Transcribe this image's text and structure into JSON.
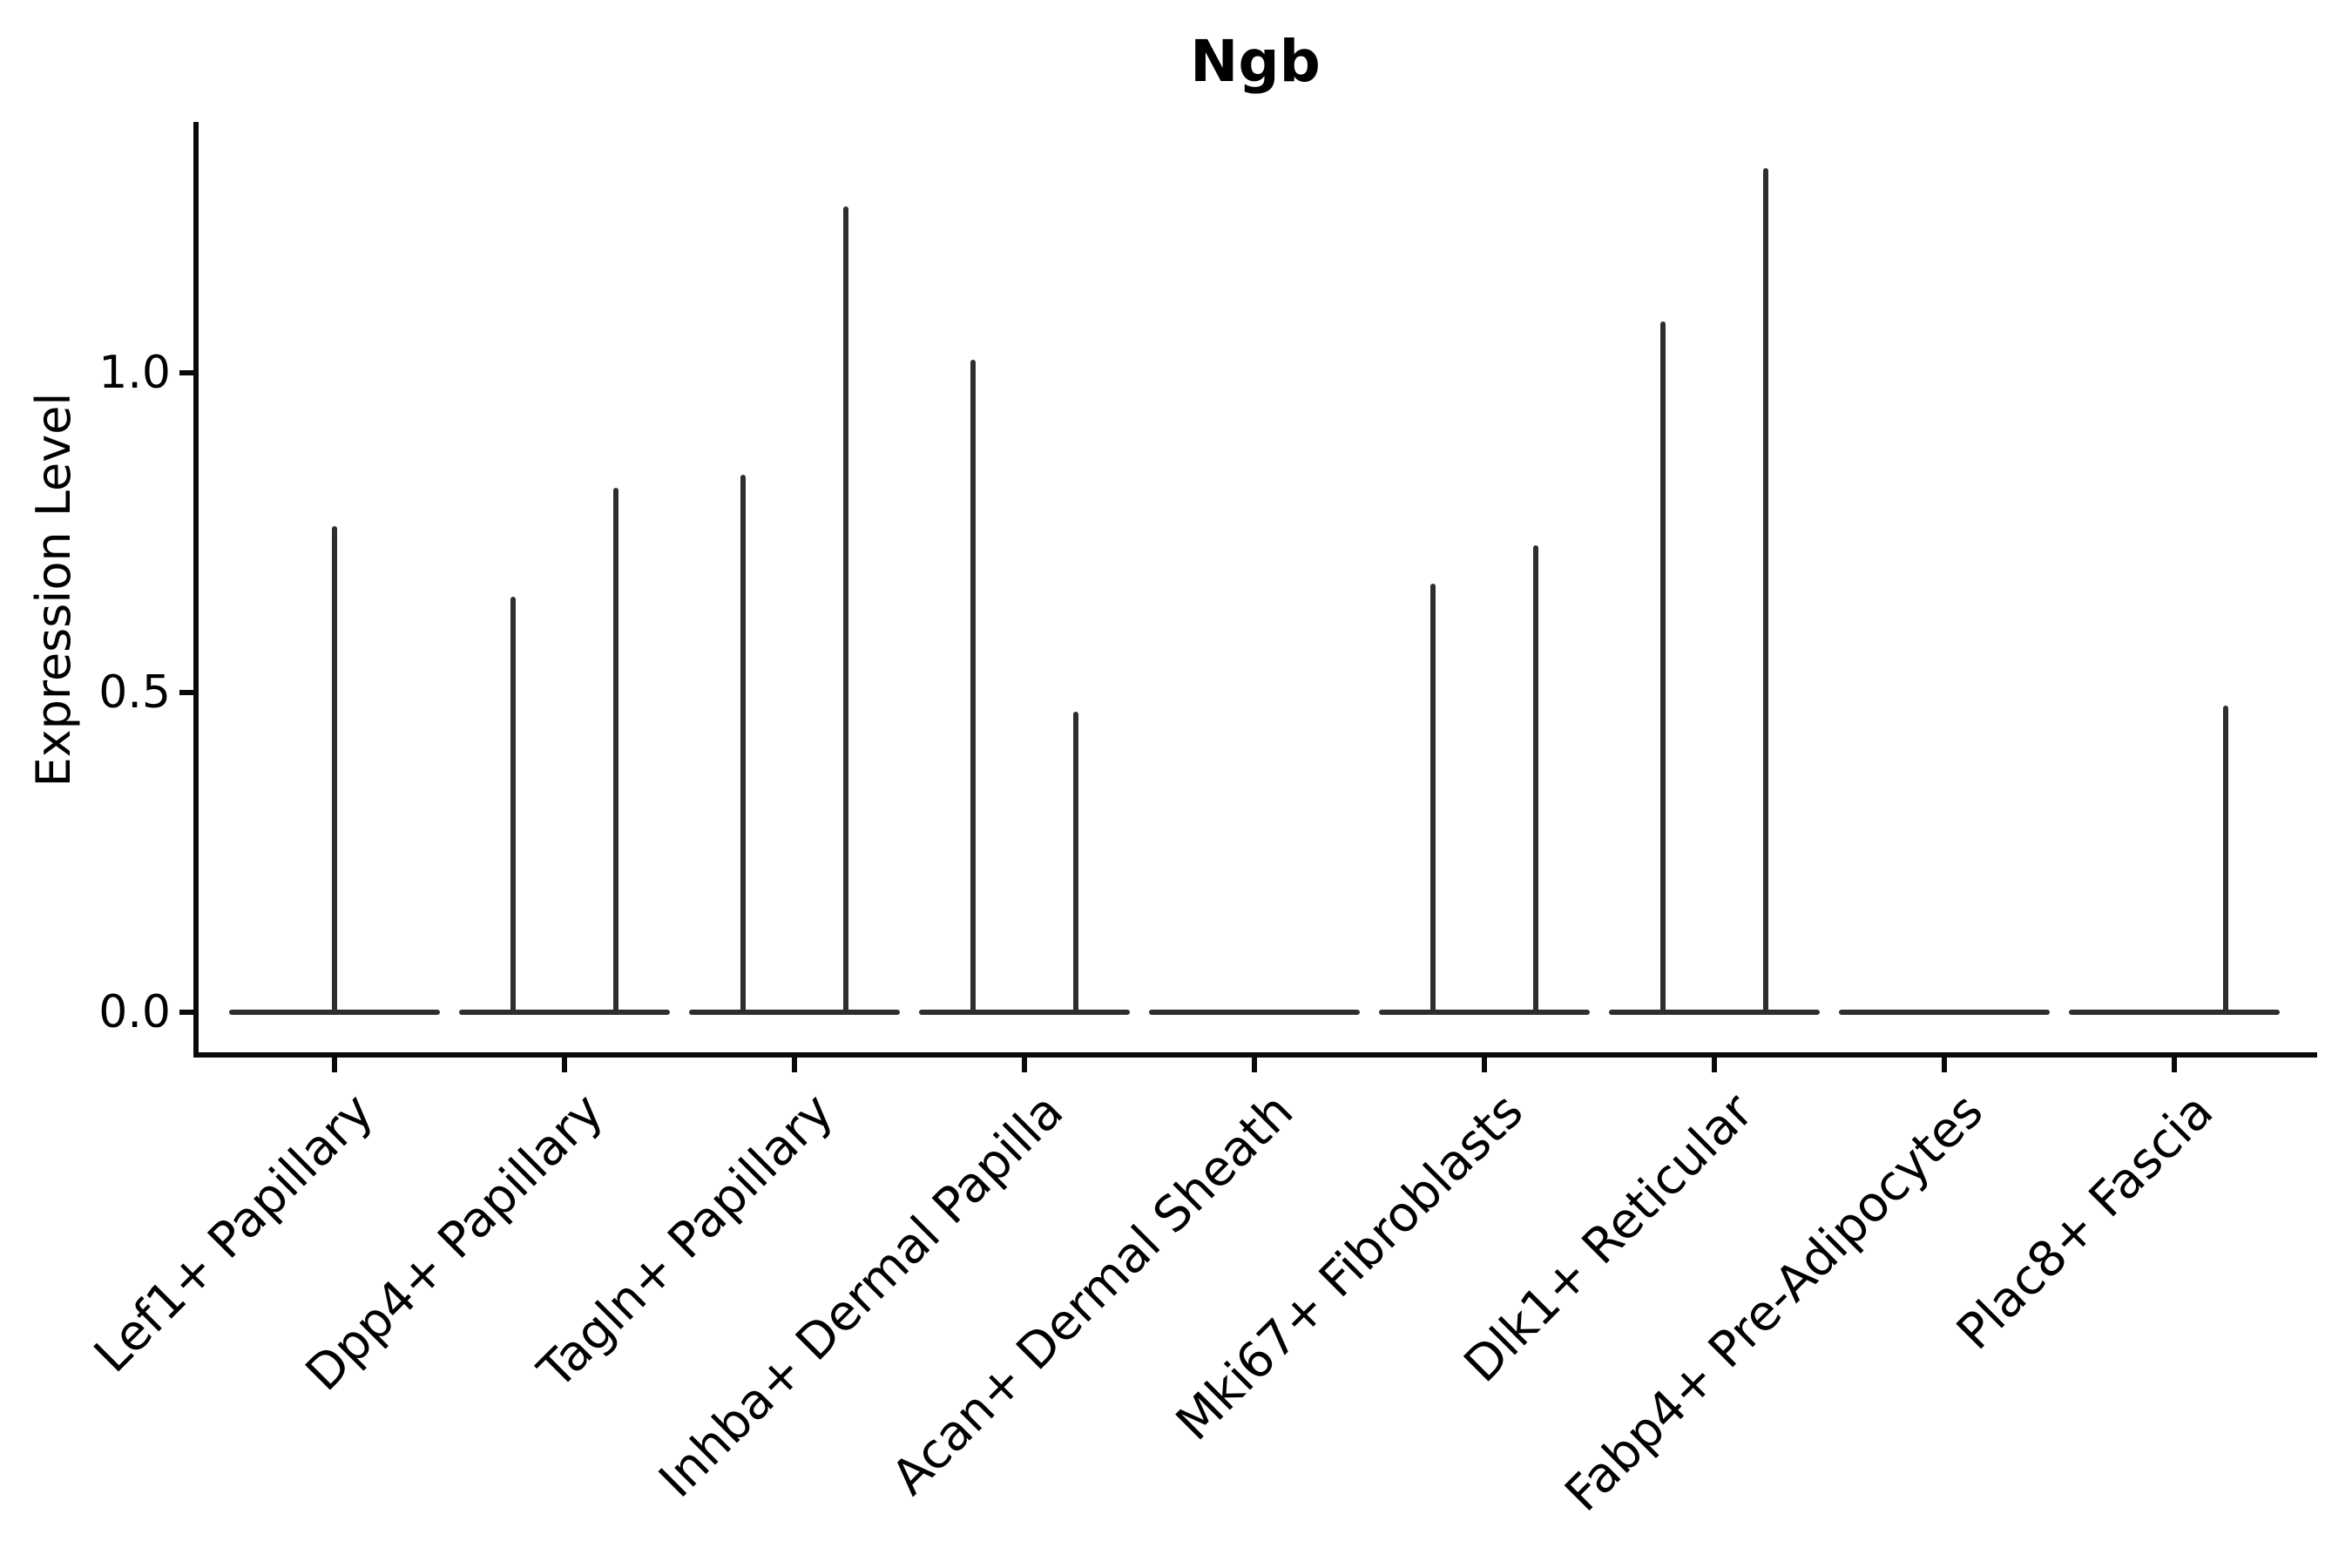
{
  "chart_data": {
    "type": "violin",
    "title": "Ngb",
    "xlabel": "",
    "ylabel": "Expression Level",
    "grid": false,
    "legend": "none",
    "ylim": [
      -0.07,
      1.39
    ],
    "baseline_value": 0.0,
    "y_ticks": [
      {
        "label": "0.0",
        "value": 0.0
      },
      {
        "label": "0.5",
        "value": 0.5
      },
      {
        "label": "1.0",
        "value": 1.0
      }
    ],
    "categories": [
      {
        "label": "Lef1+ Papillary",
        "violins": [
          {
            "pos": "center",
            "max": 0.76
          }
        ]
      },
      {
        "label": "Dpp4+ Papillary",
        "violins": [
          {
            "pos": "left",
            "max": 0.65
          },
          {
            "pos": "right",
            "max": 0.82
          }
        ]
      },
      {
        "label": "Tagln+ Papillary",
        "violins": [
          {
            "pos": "left",
            "max": 0.84
          },
          {
            "pos": "right",
            "max": 1.26
          }
        ]
      },
      {
        "label": "Inhba+ Dermal Papilla",
        "violins": [
          {
            "pos": "left",
            "max": 1.02
          },
          {
            "pos": "right",
            "max": 0.47
          }
        ]
      },
      {
        "label": "Acan+ Dermal Sheath",
        "violins": []
      },
      {
        "label": "Mki67+ Fibroblasts",
        "violins": [
          {
            "pos": "left",
            "max": 0.67
          },
          {
            "pos": "right",
            "max": 0.73
          }
        ]
      },
      {
        "label": "Dlk1+ Reticular",
        "violins": [
          {
            "pos": "left",
            "max": 1.08
          },
          {
            "pos": "right",
            "max": 1.32
          }
        ]
      },
      {
        "label": "Fabp4+ Pre-Adipocytes",
        "violins": []
      },
      {
        "label": "Plac8+ Fascia",
        "violins": [
          {
            "pos": "right",
            "max": 0.48
          }
        ]
      }
    ]
  },
  "colors": {
    "line": "#2e2e2e",
    "axis": "#0a0a0a",
    "text": "#000000",
    "background": "#ffffff"
  }
}
